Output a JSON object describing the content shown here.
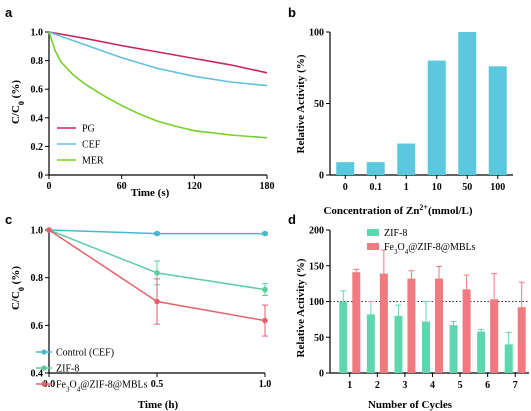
{
  "chart_data": [
    {
      "panel": "a",
      "type": "line",
      "xlabel": "Time (s)",
      "ylabel": "C/C",
      "ylabel_sub": "0",
      "ylabel_tail": " (%)",
      "xlim": [
        0,
        180
      ],
      "ylim": [
        0,
        1.0
      ],
      "xticks": [
        "0",
        "60",
        "120",
        "180"
      ],
      "yticks": [
        "0",
        "0.2",
        "0.4",
        "0.6",
        "0.8",
        "1.0"
      ],
      "legend_position": "bottom-left",
      "series": [
        {
          "name": "PG",
          "color": "#c8285a",
          "x": [
            0,
            30,
            60,
            90,
            120,
            150,
            180
          ],
          "y": [
            1.0,
            0.955,
            0.905,
            0.86,
            0.815,
            0.77,
            0.715
          ]
        },
        {
          "name": "CEF",
          "color": "#62c2dc",
          "x": [
            0,
            30,
            60,
            90,
            120,
            150,
            180
          ],
          "y": [
            1.0,
            0.91,
            0.82,
            0.745,
            0.69,
            0.65,
            0.625
          ]
        },
        {
          "name": "MER",
          "color": "#76d02c",
          "x": [
            0,
            5,
            10,
            20,
            30,
            45,
            60,
            75,
            90,
            105,
            120,
            150,
            180
          ],
          "y": [
            1.0,
            0.87,
            0.79,
            0.7,
            0.635,
            0.555,
            0.485,
            0.425,
            0.375,
            0.34,
            0.31,
            0.28,
            0.26
          ]
        }
      ]
    },
    {
      "panel": "b",
      "type": "bar",
      "xlabel": "Concentration of Zn",
      "xlabel_sup": "2+",
      "xlabel_tail": "(mmol/L)",
      "ylabel": "Relative Activity (%)",
      "ylim": [
        0,
        100
      ],
      "yticks": [
        "0",
        "50",
        "100"
      ],
      "bar_color": "#5bc8de",
      "categories": [
        "0",
        "0.1",
        "1",
        "10",
        "50",
        "100"
      ],
      "values": [
        9,
        9,
        22,
        80,
        100,
        76
      ]
    },
    {
      "panel": "c",
      "type": "line",
      "xlabel": "Time (h)",
      "ylabel": "C/C",
      "ylabel_sub": "0",
      "ylabel_tail": " (%)",
      "xlim": [
        0,
        1.0
      ],
      "ylim": [
        0.4,
        1.0
      ],
      "xticks": [
        "0.0",
        "0.5",
        "1.0"
      ],
      "yticks": [
        "0.4",
        "0.6",
        "0.8",
        "1.0"
      ],
      "legend_position": "bottom-left",
      "series": [
        {
          "name": "Control (CEF)",
          "color": "#4ab8cc",
          "x": [
            0,
            0.5,
            1.0
          ],
          "y": [
            1.0,
            0.985,
            0.985
          ],
          "err": [
            0,
            0.005,
            0.005
          ]
        },
        {
          "name": "ZIF-8",
          "color": "#5ccea0",
          "x": [
            0,
            0.5,
            1.0
          ],
          "y": [
            1.0,
            0.82,
            0.75
          ],
          "err": [
            0,
            0.05,
            0.025
          ]
        },
        {
          "name": "Fe3O4@ZIF-8@MBLs",
          "color": "#e2636e",
          "x": [
            0,
            0.5,
            1.0
          ],
          "y": [
            1.0,
            0.7,
            0.62
          ],
          "err": [
            0,
            0.095,
            0.065
          ]
        }
      ]
    },
    {
      "panel": "d",
      "type": "bar",
      "xlabel": "Number of Cycles",
      "ylabel": "Relative Activity (%)",
      "ylim": [
        0,
        200
      ],
      "yticks": [
        "0",
        "50",
        "100",
        "150",
        "200"
      ],
      "reference_line": 100,
      "legend_position": "top-right",
      "categories": [
        "1",
        "2",
        "3",
        "4",
        "5",
        "6",
        "7"
      ],
      "series": [
        {
          "name": "ZIF-8",
          "color": "#5fd6b0",
          "values": [
            100,
            82,
            80,
            72,
            67,
            58,
            40
          ],
          "err": [
            15,
            18,
            15,
            28,
            5,
            3,
            17
          ]
        },
        {
          "name": "Fe3O4@ZIF-8@MBLs",
          "color": "#f07a80",
          "values": [
            141,
            139,
            132,
            132,
            117,
            103,
            92
          ],
          "err": [
            4,
            33,
            11,
            17,
            20,
            36,
            35
          ]
        }
      ]
    }
  ],
  "legend_d": {
    "zif": "ZIF-8",
    "fe_pre": "Fe",
    "fe_sub1": "3",
    "fe_mid": "O",
    "fe_sub2": "4",
    "fe_post": "@ZIF-8@MBLs"
  },
  "legend_c": {
    "control": "Control (CEF)",
    "zif": "ZIF-8",
    "fe_pre": "Fe",
    "fe_sub1": "3",
    "fe_mid": "O",
    "fe_sub2": "4",
    "fe_post": "@ZIF-8@MBLs"
  }
}
